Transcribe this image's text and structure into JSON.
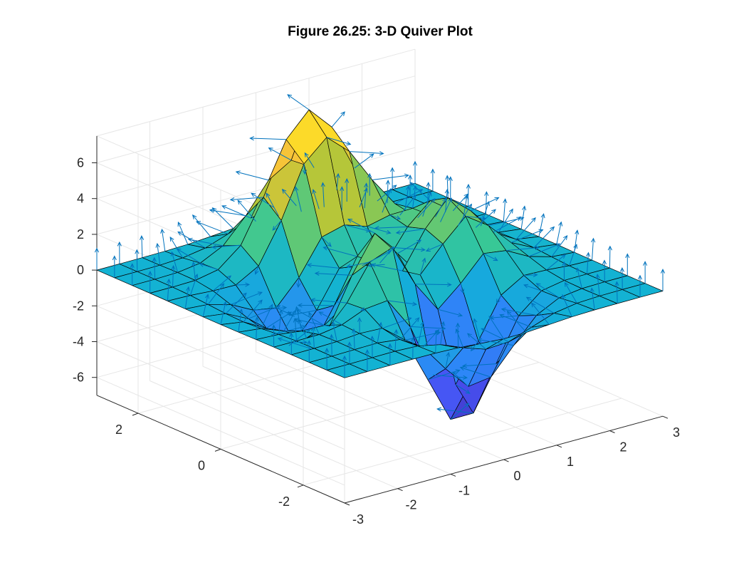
{
  "figure": {
    "title": "Figure 26.25: 3-D Quiver Plot"
  },
  "chart_data": {
    "type": "surface3d-quiver",
    "title": "Figure 26.25: 3-D Quiver Plot",
    "xlabel": "",
    "ylabel": "",
    "zlabel": "",
    "function": "peaks",
    "grid_points": 15,
    "xlim": [
      -3,
      3
    ],
    "ylim": [
      -3,
      3
    ],
    "zlim": [
      -7,
      7.5
    ],
    "x_ticks": [
      -3,
      -2,
      -1,
      0,
      1,
      2,
      3
    ],
    "y_ticks": [
      -2,
      0,
      2
    ],
    "z_ticks": [
      -6,
      -4,
      -2,
      0,
      2,
      4,
      6
    ],
    "x_tick_labels": [
      "-3",
      "-2",
      "-1",
      "0",
      "1",
      "2",
      "3"
    ],
    "y_tick_labels": [
      "-2",
      "0",
      "2"
    ],
    "z_tick_labels": [
      "-6",
      "-4",
      "-2",
      "0",
      "2",
      "4",
      "6"
    ],
    "view": {
      "azimuth": -37.5,
      "elevation": 30
    },
    "grid": true,
    "colormap": "parula",
    "quiver_color": "#0072bd",
    "edge_color": "#000000"
  }
}
